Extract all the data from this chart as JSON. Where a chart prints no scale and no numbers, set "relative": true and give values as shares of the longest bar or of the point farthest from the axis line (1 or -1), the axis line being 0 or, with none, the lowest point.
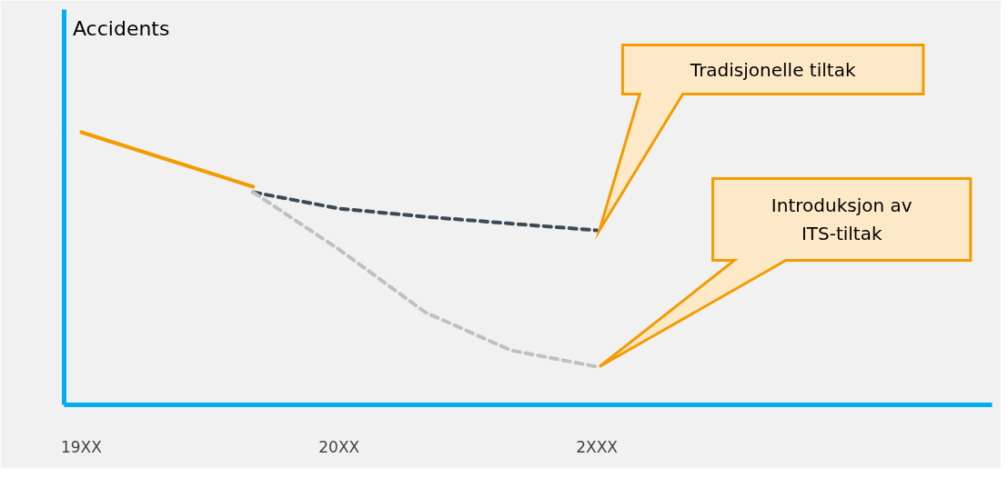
{
  "chart_data": {
    "type": "line",
    "relative": true,
    "ylabel": "Accidents",
    "categories": [
      "19XX",
      null,
      null,
      "20XX",
      null,
      null,
      "2XXX"
    ],
    "series": [
      {
        "color": "#f39c00",
        "line_style": "solid",
        "values": [
          1.0,
          0.9,
          0.8,
          null,
          null,
          null,
          null
        ]
      },
      {
        "color": "#3d4a55",
        "line_style": "dashed",
        "values": [
          null,
          null,
          0.78,
          0.72,
          0.69,
          0.665,
          0.64
        ]
      },
      {
        "color": "#c0c0c0",
        "line_style": "dashed",
        "values": [
          null,
          null,
          0.78,
          0.57,
          0.34,
          0.2,
          0.14
        ]
      }
    ],
    "annotations": [
      "Tradisjonelle tiltak",
      "Introduksjon av\nITS-tiltak"
    ],
    "grid": false
  }
}
